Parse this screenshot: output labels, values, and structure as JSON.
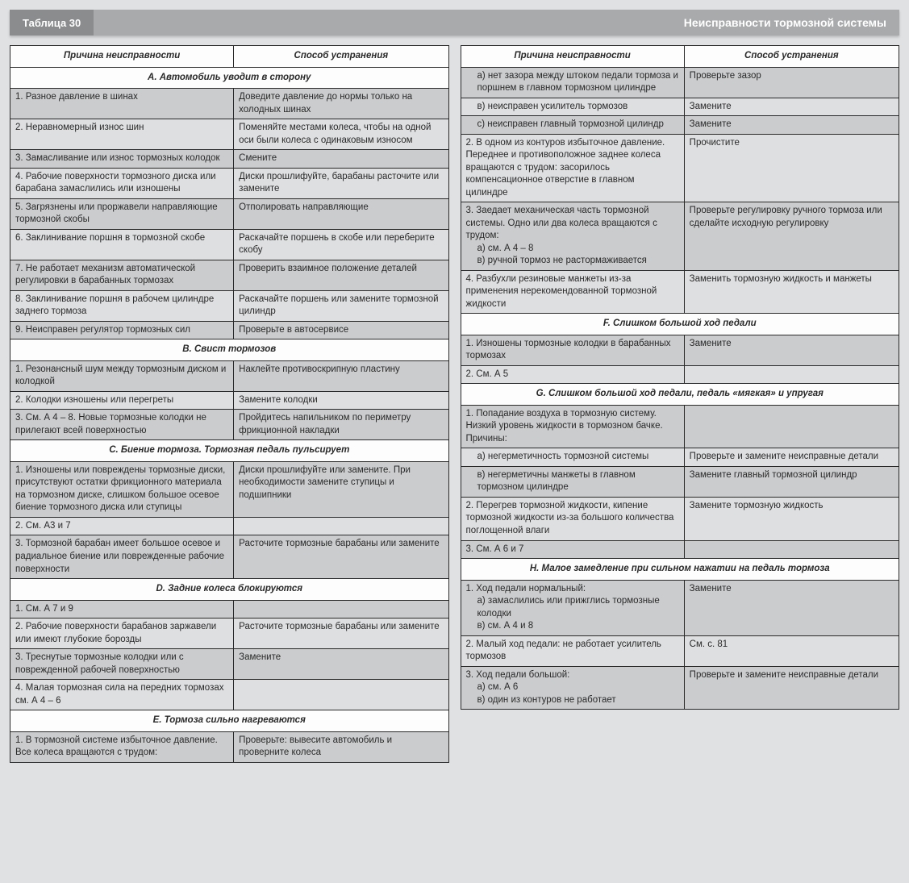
{
  "title_tab": "Таблица 30",
  "title_main": "Неисправности тормозной системы",
  "header_cause": "Причина неисправности",
  "header_fix": "Способ устранения",
  "colors": {
    "page_bg": "#e0e1e3",
    "tab_bg": "#8a8c8e",
    "bar_bg": "#a8aaac",
    "header_bg": "#fdfdfd",
    "row_odd": "#cbccce",
    "row_even": "#dedfe1",
    "border": "#2a2a2a",
    "text": "#2a2a2a"
  },
  "typography": {
    "base_fontsize_pt": 9,
    "header_fontsize_pt": 9,
    "title_fontsize_pt": 11
  },
  "left": [
    {
      "type": "section",
      "text": "А. Автомобиль уводит в сторону"
    },
    {
      "type": "row",
      "cause": "1. Разное давление в шинах",
      "fix": "Доведите давление до нормы только на холодных шинах"
    },
    {
      "type": "row",
      "cause": "2. Неравномерный износ шин",
      "fix": "Поменяйте местами колеса, чтобы на одной оси были колеса с одинаковым износом"
    },
    {
      "type": "row",
      "cause": "3. Замасливание или износ тормозных колодок",
      "fix": "Смените"
    },
    {
      "type": "row",
      "cause": "4. Рабочие поверхности тормозного диска или барабана замаслились или изношены",
      "fix": "Диски прошлифуйте, барабаны расточите или замените"
    },
    {
      "type": "row",
      "cause": "5. Загрязнены или проржавели направляющие тормозной скобы",
      "fix": "Отполировать направляющие"
    },
    {
      "type": "row",
      "cause": "6. Заклинивание поршня в тормозной скобе",
      "fix": "Раскачайте поршень в скобе или переберите скобу"
    },
    {
      "type": "row",
      "cause": "7. Не работает механизм автоматической регулировки в барабанных тормозах",
      "fix": "Проверить взаимное положение деталей"
    },
    {
      "type": "row",
      "cause": "8. Заклинивание поршня в рабочем цилиндре заднего тормоза",
      "fix": "Раскачайте поршень или замените тормозной цилиндр"
    },
    {
      "type": "row",
      "cause": "9. Неисправен регулятор тормозных сил",
      "fix": "Проверьте в автосервисе"
    },
    {
      "type": "section",
      "text": "В. Свист тормозов"
    },
    {
      "type": "row",
      "cause": "1. Резонансный шум между тормозным диском и колодкой",
      "fix": "Наклейте противоскрипную пластину"
    },
    {
      "type": "row",
      "cause": "2. Колодки изношены или перегреты",
      "fix": "Замените колодки"
    },
    {
      "type": "row",
      "cause": "3. См. А 4 – 8. Новые тормозные колодки не прилегают всей поверхностью",
      "fix": "Пройдитесь напильником по периметру фрикционной накладки"
    },
    {
      "type": "section",
      "text": "С. Биение тормоза. Тормозная педаль пульсирует"
    },
    {
      "type": "row",
      "cause": "1. Изношены или повреждены тормозные диски, присутствуют остатки фрикционного материала на тормозном диске, слишком большое осевое биение тормозного диска или ступицы",
      "fix": "Диски прошлифуйте или замените. При необходимости замените ступицы и подшипники"
    },
    {
      "type": "row",
      "cause": "2. См. А3 и 7",
      "fix": ""
    },
    {
      "type": "row",
      "cause": "3. Тормозной барабан имеет большое осевое и радиальное биение или поврежденные рабочие поверхности",
      "fix": "Расточите тормозные барабаны или замените"
    },
    {
      "type": "section",
      "text": "D. Задние колеса блокируются"
    },
    {
      "type": "row",
      "cause": "1. См. А 7 и 9",
      "fix": ""
    },
    {
      "type": "row",
      "cause": "2. Рабочие поверхности барабанов заржавели или имеют глубокие борозды",
      "fix": "Расточите тормозные барабаны или замените"
    },
    {
      "type": "row",
      "cause": "3. Треснутые тормозные колодки или с поврежденной рабочей поверхностью",
      "fix": "Замените"
    },
    {
      "type": "row",
      "cause": "4. Малая тормозная сила на передних тормозах см. А 4 – 6",
      "fix": ""
    },
    {
      "type": "section",
      "text": "Е. Тормоза сильно нагреваются"
    },
    {
      "type": "row",
      "cause": "1. В тормозной системе избыточное давление. Все колеса вращаются с трудом:",
      "fix": "Проверьте: вывесите автомобиль и проверните колеса"
    }
  ],
  "right": [
    {
      "type": "row",
      "lines": [
        {
          "t": "а) нет зазора между штоком педали тормоза и поршнем в главном тормозном цилиндре",
          "sub": true
        }
      ],
      "fix": "Проверьте зазор"
    },
    {
      "type": "row",
      "lines": [
        {
          "t": "в) неисправен усилитель тормозов",
          "sub": true
        }
      ],
      "fix": "Замените"
    },
    {
      "type": "row",
      "lines": [
        {
          "t": "с) неисправен главный тормозной цилиндр",
          "sub": true
        }
      ],
      "fix": "Замените"
    },
    {
      "type": "row",
      "lines": [
        {
          "t": "2. В одном из контуров избыточное давление. Переднее и противоположное заднее колеса вращаются с трудом: засорилось компенсационное отверстие в главном цилиндре",
          "sub": false
        }
      ],
      "fix": "Прочистите"
    },
    {
      "type": "row",
      "lines": [
        {
          "t": "3. Заедает механическая часть тормозной системы. Одно или два колеса вращаются с трудом:",
          "sub": false
        },
        {
          "t": "а) см. А 4 – 8",
          "sub": true
        },
        {
          "t": "в) ручной тормоз не растормаживается",
          "sub": true
        }
      ],
      "fix": "Проверьте регулировку ручного тормоза или сделайте исходную регулировку"
    },
    {
      "type": "row",
      "lines": [
        {
          "t": "4. Разбухли резиновые манжеты из-за применения нерекомендованной тормозной жидкости",
          "sub": false
        }
      ],
      "fix": "Заменить тормозную жидкость и манжеты"
    },
    {
      "type": "section",
      "text": "F. Слишком большой ход педали"
    },
    {
      "type": "row",
      "lines": [
        {
          "t": "1. Изношены тормозные колодки в барабанных тормозах",
          "sub": false
        }
      ],
      "fix": "Замените"
    },
    {
      "type": "row",
      "lines": [
        {
          "t": "2. См. А 5",
          "sub": false
        }
      ],
      "fix": ""
    },
    {
      "type": "section",
      "text": "G. Слишком большой ход педали, педаль «мягкая» и упругая"
    },
    {
      "type": "row",
      "lines": [
        {
          "t": "1. Попадание воздуха в тормозную систему. Низкий уровень жидкости в тормозном бачке.",
          "sub": false
        },
        {
          "t": "Причины:",
          "sub": false
        }
      ],
      "fix": ""
    },
    {
      "type": "row",
      "lines": [
        {
          "t": "а) негерметичность тормозной системы",
          "sub": true
        }
      ],
      "fix": "Проверьте и замените неисправные детали"
    },
    {
      "type": "row",
      "lines": [
        {
          "t": "в) негерметичны манжеты в главном тормозном цилиндре",
          "sub": true
        }
      ],
      "fix": "Замените главный тормозной цилиндр"
    },
    {
      "type": "row",
      "lines": [
        {
          "t": "2. Перегрев тормозной жидкости, кипение тормозной жидкости из-за большого количества поглощенной влаги",
          "sub": false
        }
      ],
      "fix": "Замените тормозную жидкость"
    },
    {
      "type": "row",
      "lines": [
        {
          "t": "3. См. А 6 и 7",
          "sub": false
        }
      ],
      "fix": ""
    },
    {
      "type": "section",
      "text": "H. Малое замедление при сильном нажатии на педаль тормоза"
    },
    {
      "type": "row",
      "lines": [
        {
          "t": "1. Ход педали нормальный:",
          "sub": false
        },
        {
          "t": "а) замаслились или прижглись тормозные колодки",
          "sub": true
        },
        {
          "t": "в) см. А 4 и 8",
          "sub": true
        }
      ],
      "fix": "Замените"
    },
    {
      "type": "row",
      "lines": [
        {
          "t": "2. Малый ход педали: не работает усилитель тормозов",
          "sub": false
        }
      ],
      "fix": "См. с. 81"
    },
    {
      "type": "row",
      "lines": [
        {
          "t": "3. Ход педали большой:",
          "sub": false
        },
        {
          "t": "а) см. А 6",
          "sub": true
        },
        {
          "t": "в) один из контуров не работает",
          "sub": true
        }
      ],
      "fix": "Проверьте и замените неисправные детали"
    }
  ]
}
